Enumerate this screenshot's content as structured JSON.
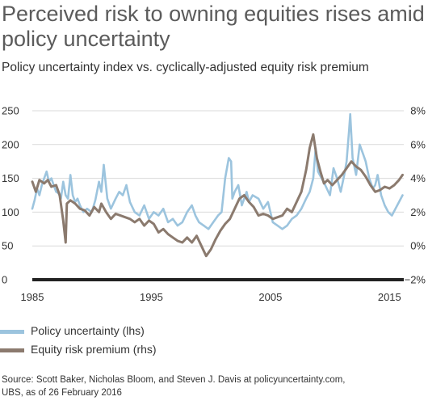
{
  "title": "Perceived risk to owning equities rises amid policy uncertainty",
  "subtitle": "Policy uncertainty index vs. cyclically-adjusted equity risk premium",
  "source_lines": [
    "Source: Scott Baker, Nicholas Bloom, and Steven J. Davis at policyuncertainty.com,",
    "UBS, as of 26 February 2016"
  ],
  "colors": {
    "policy": "#9cc4de",
    "erp": "#8b7a6e",
    "baseline": "#222222",
    "grid": "#d9d9d9"
  },
  "chart_data": {
    "type": "line",
    "title": "Perceived risk to owning equities rises amid policy uncertainty",
    "subtitle": "Policy uncertainty index vs. cyclically-adjusted equity risk premium",
    "xlim": [
      1985,
      2016.2
    ],
    "x_ticks": [
      1985,
      1995,
      2005,
      2015
    ],
    "left_axis": {
      "ylim": [
        0,
        250
      ],
      "ticks": [
        "0",
        "50",
        "100",
        "150",
        "200",
        "250"
      ],
      "tick_values": [
        0,
        50,
        100,
        150,
        200,
        250
      ]
    },
    "right_axis": {
      "ylim": [
        -2,
        8
      ],
      "ticks": [
        "−2%",
        "0%",
        "2%",
        "4%",
        "6%",
        "8%"
      ],
      "tick_values": [
        -2,
        0,
        2,
        4,
        6,
        8
      ]
    },
    "grid": true,
    "legend_position": "bottom-left",
    "series": [
      {
        "name": "Policy uncertainty (lhs)",
        "axis": "left",
        "x": [
          1985.0,
          1985.2,
          1985.4,
          1985.6,
          1985.8,
          1986.0,
          1986.2,
          1986.4,
          1986.6,
          1986.8,
          1987.0,
          1987.2,
          1987.4,
          1987.6,
          1987.8,
          1988.0,
          1988.2,
          1988.4,
          1988.6,
          1988.8,
          1989.0,
          1989.3,
          1989.6,
          1990.0,
          1990.3,
          1990.6,
          1990.8,
          1991.0,
          1991.3,
          1991.6,
          1992.0,
          1992.3,
          1992.6,
          1992.9,
          1993.2,
          1993.6,
          1994.0,
          1994.4,
          1994.8,
          1995.2,
          1995.6,
          1996.0,
          1996.4,
          1996.8,
          1997.2,
          1997.6,
          1998.0,
          1998.4,
          1998.7,
          1999.0,
          1999.4,
          1999.8,
          2000.2,
          2000.6,
          2000.9,
          2001.2,
          2001.5,
          2001.7,
          2001.8,
          2002.0,
          2002.3,
          2002.6,
          2003.0,
          2003.2,
          2003.5,
          2004.0,
          2004.4,
          2004.8,
          2005.2,
          2005.6,
          2006.0,
          2006.4,
          2006.8,
          2007.2,
          2007.6,
          2008.0,
          2008.3,
          2008.6,
          2008.8,
          2009.0,
          2009.3,
          2009.6,
          2010.0,
          2010.3,
          2010.6,
          2010.9,
          2011.2,
          2011.4,
          2011.6,
          2011.7,
          2011.9,
          2012.2,
          2012.5,
          2012.8,
          2013.0,
          2013.3,
          2013.6,
          2013.8,
          2014.0,
          2014.3,
          2014.6,
          2014.9,
          2015.2,
          2015.5,
          2015.8,
          2016.1
        ],
        "values": [
          105,
          118,
          135,
          125,
          140,
          150,
          160,
          145,
          150,
          140,
          130,
          128,
          120,
          145,
          125,
          120,
          155,
          125,
          115,
          120,
          110,
          100,
          105,
          100,
          118,
          145,
          130,
          170,
          120,
          105,
          120,
          130,
          125,
          140,
          115,
          100,
          95,
          110,
          90,
          100,
          95,
          105,
          85,
          90,
          80,
          85,
          100,
          110,
          95,
          85,
          80,
          75,
          85,
          95,
          100,
          150,
          180,
          175,
          120,
          130,
          140,
          110,
          130,
          115,
          125,
          120,
          105,
          115,
          85,
          80,
          75,
          80,
          90,
          95,
          105,
          120,
          130,
          150,
          195,
          160,
          150,
          140,
          125,
          165,
          150,
          130,
          155,
          175,
          220,
          245,
          180,
          155,
          200,
          185,
          175,
          150,
          135,
          140,
          155,
          125,
          110,
          100,
          95,
          105,
          115,
          125
        ]
      },
      {
        "name": "Equity risk premium (rhs)",
        "axis": "right",
        "x": [
          1985.0,
          1985.3,
          1985.6,
          1986.0,
          1986.3,
          1986.6,
          1987.0,
          1987.3,
          1987.6,
          1987.8,
          1987.9,
          1988.2,
          1988.6,
          1989.0,
          1989.4,
          1989.8,
          1990.2,
          1990.6,
          1990.8,
          1991.2,
          1991.6,
          1992.0,
          1992.4,
          1992.8,
          1993.2,
          1993.6,
          1994.0,
          1994.4,
          1994.8,
          1995.2,
          1995.6,
          1996.0,
          1996.4,
          1996.8,
          1997.2,
          1997.6,
          1998.0,
          1998.4,
          1998.8,
          1999.2,
          1999.6,
          2000.0,
          2000.4,
          2000.8,
          2001.2,
          2001.6,
          2002.0,
          2002.4,
          2002.8,
          2003.2,
          2003.6,
          2004.0,
          2004.4,
          2004.8,
          2005.2,
          2005.6,
          2006.0,
          2006.4,
          2006.8,
          2007.2,
          2007.6,
          2008.0,
          2008.3,
          2008.6,
          2008.9,
          2009.2,
          2009.5,
          2009.8,
          2010.2,
          2010.6,
          2011.0,
          2011.4,
          2011.8,
          2012.2,
          2012.6,
          2013.0,
          2013.4,
          2013.8,
          2014.2,
          2014.6,
          2015.0,
          2015.4,
          2015.8,
          2016.1
        ],
        "values": [
          3.8,
          3.2,
          3.9,
          3.7,
          3.9,
          3.5,
          3.6,
          3.0,
          1.5,
          0.2,
          2.5,
          2.7,
          2.5,
          2.2,
          2.1,
          1.8,
          2.3,
          2.0,
          2.5,
          2.0,
          1.6,
          1.9,
          1.8,
          1.7,
          1.6,
          1.4,
          1.6,
          1.2,
          1.5,
          1.3,
          0.8,
          1.0,
          0.7,
          0.5,
          0.3,
          0.2,
          0.5,
          0.2,
          0.6,
          0.0,
          -0.6,
          -0.2,
          0.4,
          0.9,
          1.3,
          1.6,
          2.2,
          2.8,
          3.0,
          2.6,
          2.3,
          1.8,
          1.9,
          1.8,
          1.6,
          1.7,
          1.8,
          2.2,
          2.0,
          2.6,
          3.2,
          4.5,
          5.8,
          6.6,
          5.2,
          4.4,
          3.7,
          3.9,
          3.6,
          3.9,
          4.2,
          4.6,
          5.0,
          4.7,
          4.5,
          4.1,
          3.6,
          3.2,
          3.3,
          3.5,
          3.4,
          3.6,
          3.9,
          4.2
        ]
      }
    ]
  }
}
